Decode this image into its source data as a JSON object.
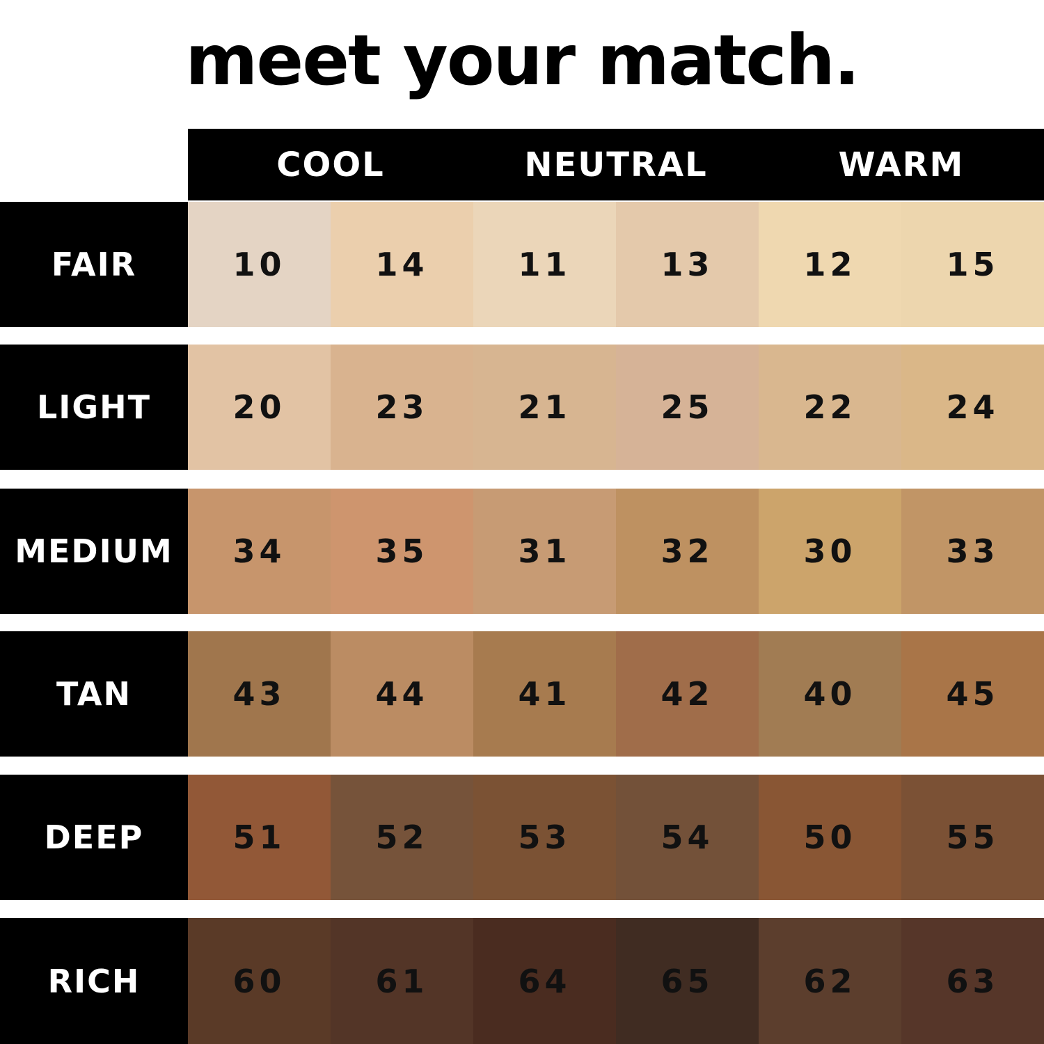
{
  "title": "meet your match.",
  "columns": [
    "COOL",
    "NEUTRAL",
    "WARM"
  ],
  "rows": [
    {
      "label": "FAIR",
      "shades": [
        {
          "n": "10",
          "color": "#e4d4c4"
        },
        {
          "n": "14",
          "color": "#ebcfad"
        },
        {
          "n": "11",
          "color": "#ebd6b9"
        },
        {
          "n": "13",
          "color": "#e4c9ab"
        },
        {
          "n": "12",
          "color": "#efd8b0"
        },
        {
          "n": "15",
          "color": "#edd6ae"
        }
      ]
    },
    {
      "label": "LIGHT",
      "shades": [
        {
          "n": "20",
          "color": "#e2c3a4"
        },
        {
          "n": "23",
          "color": "#d9b38f"
        },
        {
          "n": "21",
          "color": "#d7b591"
        },
        {
          "n": "25",
          "color": "#d6b397"
        },
        {
          "n": "22",
          "color": "#d9b78f"
        },
        {
          "n": "24",
          "color": "#dab788"
        }
      ]
    },
    {
      "label": "MEDIUM",
      "shades": [
        {
          "n": "34",
          "color": "#c7956c"
        },
        {
          "n": "35",
          "color": "#ce956e"
        },
        {
          "n": "31",
          "color": "#c79b74"
        },
        {
          "n": "32",
          "color": "#be9161"
        },
        {
          "n": "30",
          "color": "#cca46b"
        },
        {
          "n": "33",
          "color": "#c19566"
        }
      ]
    },
    {
      "label": "TAN",
      "shades": [
        {
          "n": "43",
          "color": "#a0764d"
        },
        {
          "n": "44",
          "color": "#bb8c63"
        },
        {
          "n": "41",
          "color": "#a77b4f"
        },
        {
          "n": "42",
          "color": "#a06d4a"
        },
        {
          "n": "40",
          "color": "#a17c53"
        },
        {
          "n": "45",
          "color": "#a97548"
        }
      ]
    },
    {
      "label": "DEEP",
      "shades": [
        {
          "n": "51",
          "color": "#925837"
        },
        {
          "n": "52",
          "color": "#76533a"
        },
        {
          "n": "53",
          "color": "#7b5234"
        },
        {
          "n": "54",
          "color": "#735139"
        },
        {
          "n": "50",
          "color": "#895634"
        },
        {
          "n": "55",
          "color": "#7b5135"
        }
      ]
    },
    {
      "label": "RICH",
      "shades": [
        {
          "n": "60",
          "color": "#5a3a27"
        },
        {
          "n": "61",
          "color": "#533527"
        },
        {
          "n": "64",
          "color": "#4a2c20"
        },
        {
          "n": "65",
          "color": "#402c22"
        },
        {
          "n": "62",
          "color": "#5c3e2d"
        },
        {
          "n": "63",
          "color": "#563629"
        }
      ]
    }
  ]
}
